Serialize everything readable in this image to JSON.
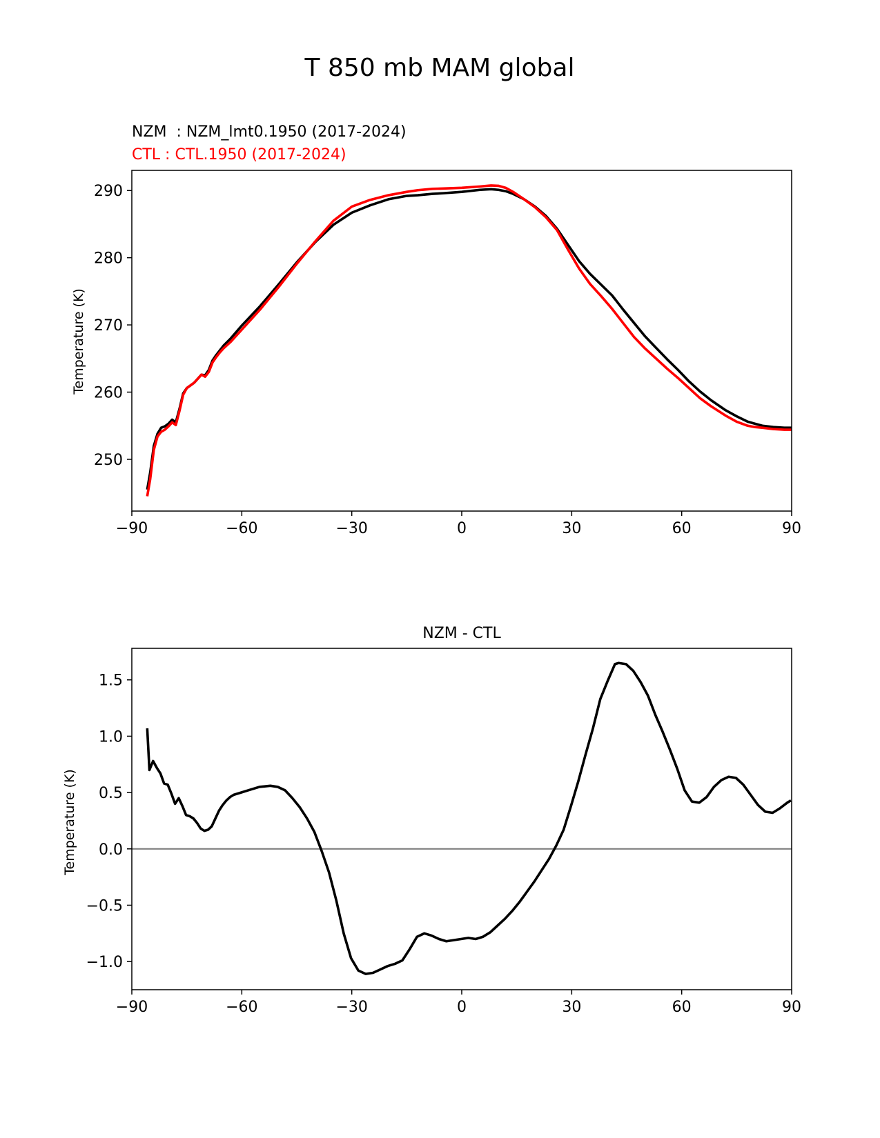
{
  "figure_title": "T 850 mb MAM global",
  "chart_data": [
    {
      "type": "line",
      "title": "",
      "legend_text": [
        {
          "text": "NZM  : NZM_lmt0.1950 (2017-2024)",
          "color": "#000000"
        },
        {
          "text": "CTL : CTL.1950 (2017-2024)",
          "color": "#ff0000"
        }
      ],
      "legend_placement": "top-left above axes",
      "xlabel": "",
      "ylabel": "Temperature (K)",
      "xlim": [
        -90,
        90
      ],
      "ylim": [
        242.3,
        293
      ],
      "xticks": [
        -90,
        -60,
        -30,
        0,
        30,
        60,
        90
      ],
      "xtick_labels": [
        "−90",
        "−60",
        "−30",
        "0",
        "30",
        "60",
        "90"
      ],
      "yticks": [
        250,
        260,
        270,
        280,
        290
      ],
      "ytick_labels": [
        "250",
        "260",
        "270",
        "280",
        "290"
      ],
      "grid": false,
      "series": [
        {
          "name": "NZM",
          "color": "#000000",
          "x": [
            -85.8,
            -85,
            -84,
            -83,
            -82,
            -81,
            -80,
            -79,
            -78,
            -77,
            -76,
            -75,
            -74,
            -73,
            -72,
            -71,
            -70,
            -69,
            -68,
            -67,
            -66,
            -65,
            -63,
            -60,
            -55,
            -50,
            -45,
            -40,
            -35,
            -30,
            -25,
            -20,
            -15,
            -12,
            -10,
            -8,
            -5,
            0,
            5,
            8,
            10,
            12,
            14,
            17,
            20,
            23,
            26,
            29,
            32,
            35,
            38,
            41,
            44,
            47,
            50,
            53,
            56,
            59,
            62,
            65,
            68,
            72,
            75,
            78,
            80,
            82,
            85,
            88,
            90
          ],
          "y": [
            245.5,
            248,
            252,
            253.8,
            254.7,
            254.9,
            255.3,
            255.9,
            255.5,
            257.5,
            259.8,
            260.6,
            261,
            261.4,
            262,
            262.6,
            262.5,
            263.3,
            264.7,
            265.5,
            266.2,
            266.9,
            268,
            269.9,
            272.8,
            276,
            279.3,
            282.3,
            284.9,
            286.7,
            287.8,
            288.7,
            289.2,
            289.3,
            289.4,
            289.5,
            289.6,
            289.8,
            290.1,
            290.2,
            290.1,
            289.9,
            289.5,
            288.7,
            287.6,
            286.2,
            284.3,
            281.9,
            279.5,
            277.6,
            276,
            274.4,
            272.3,
            270.3,
            268.3,
            266.6,
            264.9,
            263.3,
            261.6,
            260.1,
            258.8,
            257.3,
            256.4,
            255.6,
            255.3,
            255,
            254.8,
            254.7,
            254.7
          ]
        },
        {
          "name": "CTL",
          "color": "#ff0000",
          "x": [
            -85.8,
            -85,
            -84,
            -83,
            -82,
            -81,
            -80,
            -79,
            -78,
            -77,
            -76,
            -75,
            -74,
            -73,
            -72,
            -71,
            -70,
            -69,
            -68,
            -67,
            -66,
            -65,
            -63,
            -60,
            -55,
            -50,
            -45,
            -40,
            -35,
            -30,
            -25,
            -20,
            -15,
            -12,
            -10,
            -8,
            -5,
            0,
            5,
            8,
            10,
            12,
            14,
            17,
            20,
            23,
            26,
            29,
            32,
            35,
            38,
            41,
            44,
            47,
            50,
            53,
            56,
            59,
            62,
            65,
            68,
            72,
            75,
            78,
            80,
            82,
            85,
            88,
            90
          ],
          "y": [
            244.5,
            247,
            251.4,
            253.4,
            254.1,
            254.4,
            254.9,
            255.5,
            255.1,
            257.2,
            259.6,
            260.6,
            261,
            261.4,
            262,
            262.6,
            262.3,
            263,
            264.4,
            265.2,
            265.9,
            266.5,
            267.5,
            269.3,
            272.3,
            275.6,
            279.1,
            282.4,
            285.5,
            287.6,
            288.6,
            289.3,
            289.8,
            290.05,
            290.15,
            290.25,
            290.3,
            290.4,
            290.6,
            290.75,
            290.7,
            290.4,
            289.8,
            288.7,
            287.5,
            286,
            284.1,
            281.2,
            278.4,
            276.1,
            274.3,
            272.4,
            270.3,
            268.2,
            266.5,
            265,
            263.5,
            262.1,
            260.6,
            259.1,
            257.9,
            256.5,
            255.6,
            255,
            254.8,
            254.7,
            254.5,
            254.4,
            254.4
          ]
        }
      ]
    },
    {
      "type": "line",
      "title": "NZM - CTL",
      "xlabel": "",
      "ylabel": "Temperature (K)",
      "xlim": [
        -90,
        90
      ],
      "ylim": [
        -1.25,
        1.78
      ],
      "xticks": [
        -90,
        -60,
        -30,
        0,
        30,
        60,
        90
      ],
      "xtick_labels": [
        "−90",
        "−60",
        "−30",
        "0",
        "30",
        "60",
        "90"
      ],
      "yticks": [
        -1.0,
        -0.5,
        0.0,
        0.5,
        1.0,
        1.5
      ],
      "ytick_labels": [
        "−1.0",
        "−0.5",
        "0.0",
        "0.5",
        "1.0",
        "1.5"
      ],
      "grid": false,
      "reference_line": {
        "y": 0,
        "color": "#808080"
      },
      "series": [
        {
          "name": "NZM - CTL",
          "color": "#000000",
          "x": [
            -85.8,
            -85.2,
            -84.2,
            -83.2,
            -82.2,
            -81.2,
            -80.2,
            -79.2,
            -78.2,
            -77.2,
            -76.2,
            -75.2,
            -74.2,
            -73.2,
            -72.2,
            -71.2,
            -70.2,
            -69.2,
            -68.2,
            -67.2,
            -66.2,
            -65.2,
            -64.2,
            -63.2,
            -62.2,
            -60.2,
            -58.2,
            -55.2,
            -52.2,
            -50.2,
            -48.2,
            -46.2,
            -44.2,
            -42.2,
            -40.2,
            -38.2,
            -36.2,
            -34.2,
            -32.2,
            -30.2,
            -28.2,
            -26.2,
            -24.2,
            -22.2,
            -20.2,
            -18.2,
            -16.2,
            -14.2,
            -12.2,
            -10.2,
            -8.2,
            -6.2,
            -4.2,
            -2.2,
            -0.2,
            1.8,
            3.8,
            5.8,
            7.8,
            9.8,
            11.8,
            13.8,
            15.8,
            17.8,
            19.8,
            21.8,
            23.8,
            25.8,
            27.8,
            29.8,
            31.8,
            33.8,
            35.8,
            37.8,
            39.8,
            41.8,
            42.8,
            44.8,
            46.8,
            48.8,
            50.8,
            52.8,
            54.8,
            56.8,
            58.8,
            60.8,
            62.8,
            64.8,
            66.8,
            68.8,
            70.8,
            72.8,
            74.8,
            76.8,
            78.8,
            80.8,
            82.8,
            84.8,
            86.8,
            88.8,
            89.8
          ],
          "y": [
            1.07,
            0.7,
            0.78,
            0.72,
            0.67,
            0.58,
            0.57,
            0.49,
            0.4,
            0.45,
            0.38,
            0.3,
            0.29,
            0.27,
            0.23,
            0.18,
            0.16,
            0.17,
            0.2,
            0.27,
            0.34,
            0.39,
            0.43,
            0.46,
            0.48,
            0.5,
            0.52,
            0.55,
            0.56,
            0.55,
            0.52,
            0.45,
            0.37,
            0.27,
            0.15,
            -0.02,
            -0.21,
            -0.46,
            -0.75,
            -0.97,
            -1.08,
            -1.11,
            -1.1,
            -1.07,
            -1.04,
            -1.02,
            -0.99,
            -0.89,
            -0.78,
            -0.75,
            -0.77,
            -0.8,
            -0.82,
            -0.81,
            -0.8,
            -0.79,
            -0.8,
            -0.78,
            -0.74,
            -0.68,
            -0.62,
            -0.55,
            -0.47,
            -0.38,
            -0.29,
            -0.19,
            -0.09,
            0.03,
            0.17,
            0.38,
            0.6,
            0.84,
            1.07,
            1.33,
            1.49,
            1.64,
            1.65,
            1.64,
            1.58,
            1.48,
            1.36,
            1.19,
            1.04,
            0.88,
            0.71,
            0.52,
            0.42,
            0.41,
            0.46,
            0.55,
            0.61,
            0.64,
            0.63,
            0.57,
            0.48,
            0.39,
            0.33,
            0.32,
            0.36,
            0.41,
            0.43
          ]
        }
      ]
    }
  ]
}
